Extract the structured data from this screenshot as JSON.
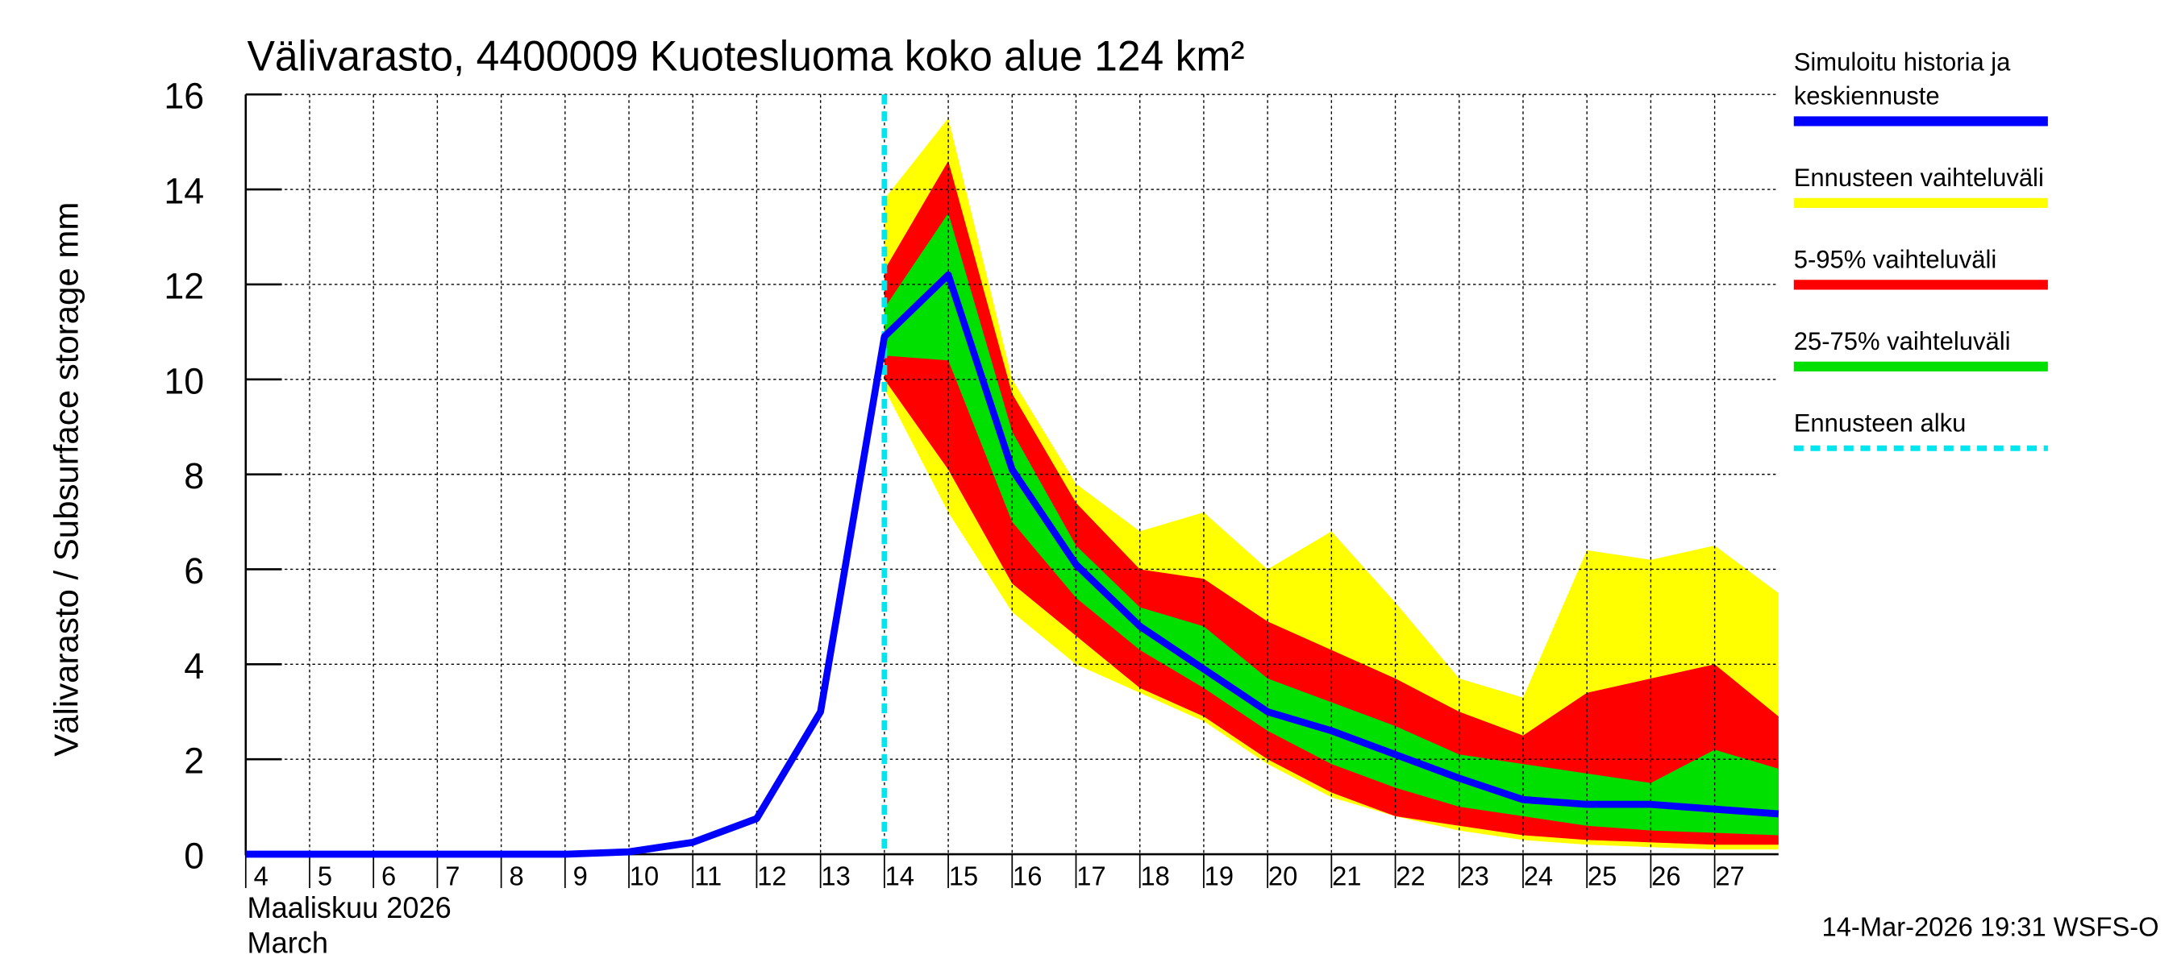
{
  "chart_data": {
    "type": "line",
    "title": "Välivarasto, 4400009 Kuotesluoma koko alue 124 km²",
    "y_label": "Välivarasto / Subsurface storage  mm",
    "x_label": [
      "Maaliskuu 2026",
      "March"
    ],
    "footer": "14-Mar-2026 19:31 WSFS-O",
    "x": [
      4,
      5,
      6,
      7,
      8,
      9,
      10,
      11,
      12,
      13,
      14,
      15,
      16,
      17,
      18,
      19,
      20,
      21,
      22,
      23,
      24,
      25,
      26,
      27,
      28
    ],
    "xlim": [
      4,
      28
    ],
    "xticks": [
      4,
      5,
      6,
      7,
      8,
      9,
      10,
      11,
      12,
      13,
      14,
      15,
      16,
      17,
      18,
      19,
      20,
      21,
      22,
      23,
      24,
      25,
      26,
      27
    ],
    "ylim": [
      0,
      16
    ],
    "yticks": [
      0,
      2,
      4,
      6,
      8,
      10,
      12,
      14,
      16
    ],
    "grid": true,
    "bands": [
      {
        "name": "Ennusteen vaihteluväli",
        "color": "#ffff00",
        "upper": [
          null,
          null,
          null,
          null,
          null,
          null,
          null,
          null,
          null,
          null,
          13.8,
          15.5,
          10,
          7.8,
          6.8,
          7.2,
          6,
          6.8,
          5.3,
          3.7,
          3.3,
          6.4,
          6.2,
          6.5,
          5.5
        ],
        "lower": [
          null,
          null,
          null,
          null,
          null,
          null,
          null,
          null,
          null,
          null,
          9.8,
          7.2,
          5.1,
          4,
          3.4,
          2.8,
          1.9,
          1.2,
          0.8,
          0.5,
          0.3,
          0.2,
          0.15,
          0.1,
          0.1
        ]
      },
      {
        "name": "5-95% vaihteluväli",
        "color": "#ff0000",
        "upper": [
          null,
          null,
          null,
          null,
          null,
          null,
          null,
          null,
          null,
          null,
          12.3,
          14.6,
          9.7,
          7.4,
          6,
          5.8,
          4.9,
          4.3,
          3.7,
          3,
          2.5,
          3.4,
          3.7,
          4,
          2.9
        ],
        "lower": [
          null,
          null,
          null,
          null,
          null,
          null,
          null,
          null,
          null,
          null,
          10,
          8.1,
          5.7,
          4.6,
          3.5,
          2.9,
          2,
          1.3,
          0.8,
          0.6,
          0.4,
          0.3,
          0.25,
          0.2,
          0.2
        ]
      },
      {
        "name": "25-75% vaihteluväli",
        "color": "#00e000",
        "upper": [
          null,
          null,
          null,
          null,
          null,
          null,
          null,
          null,
          null,
          null,
          11.5,
          13.5,
          8.9,
          6.5,
          5.2,
          4.8,
          3.7,
          3.2,
          2.7,
          2.1,
          1.9,
          1.7,
          1.5,
          2.2,
          1.8
        ],
        "lower": [
          null,
          null,
          null,
          null,
          null,
          null,
          null,
          null,
          null,
          null,
          10.5,
          10.4,
          7,
          5.4,
          4.3,
          3.5,
          2.6,
          1.9,
          1.4,
          1,
          0.8,
          0.6,
          0.5,
          0.45,
          0.4
        ]
      }
    ],
    "series": [
      {
        "name": "Simuloitu historia ja keskiennuste",
        "color": "#0000ff",
        "values": [
          0,
          0,
          0,
          0,
          0,
          0,
          0.05,
          0.25,
          0.75,
          3,
          10.9,
          12.2,
          8.1,
          6.1,
          4.8,
          3.9,
          3,
          2.6,
          2.1,
          1.6,
          1.15,
          1.05,
          1.05,
          0.95,
          0.85
        ]
      }
    ],
    "forecast_start": {
      "name": "Ennusteen alku",
      "color": "#00e5ee",
      "x": 14
    }
  }
}
